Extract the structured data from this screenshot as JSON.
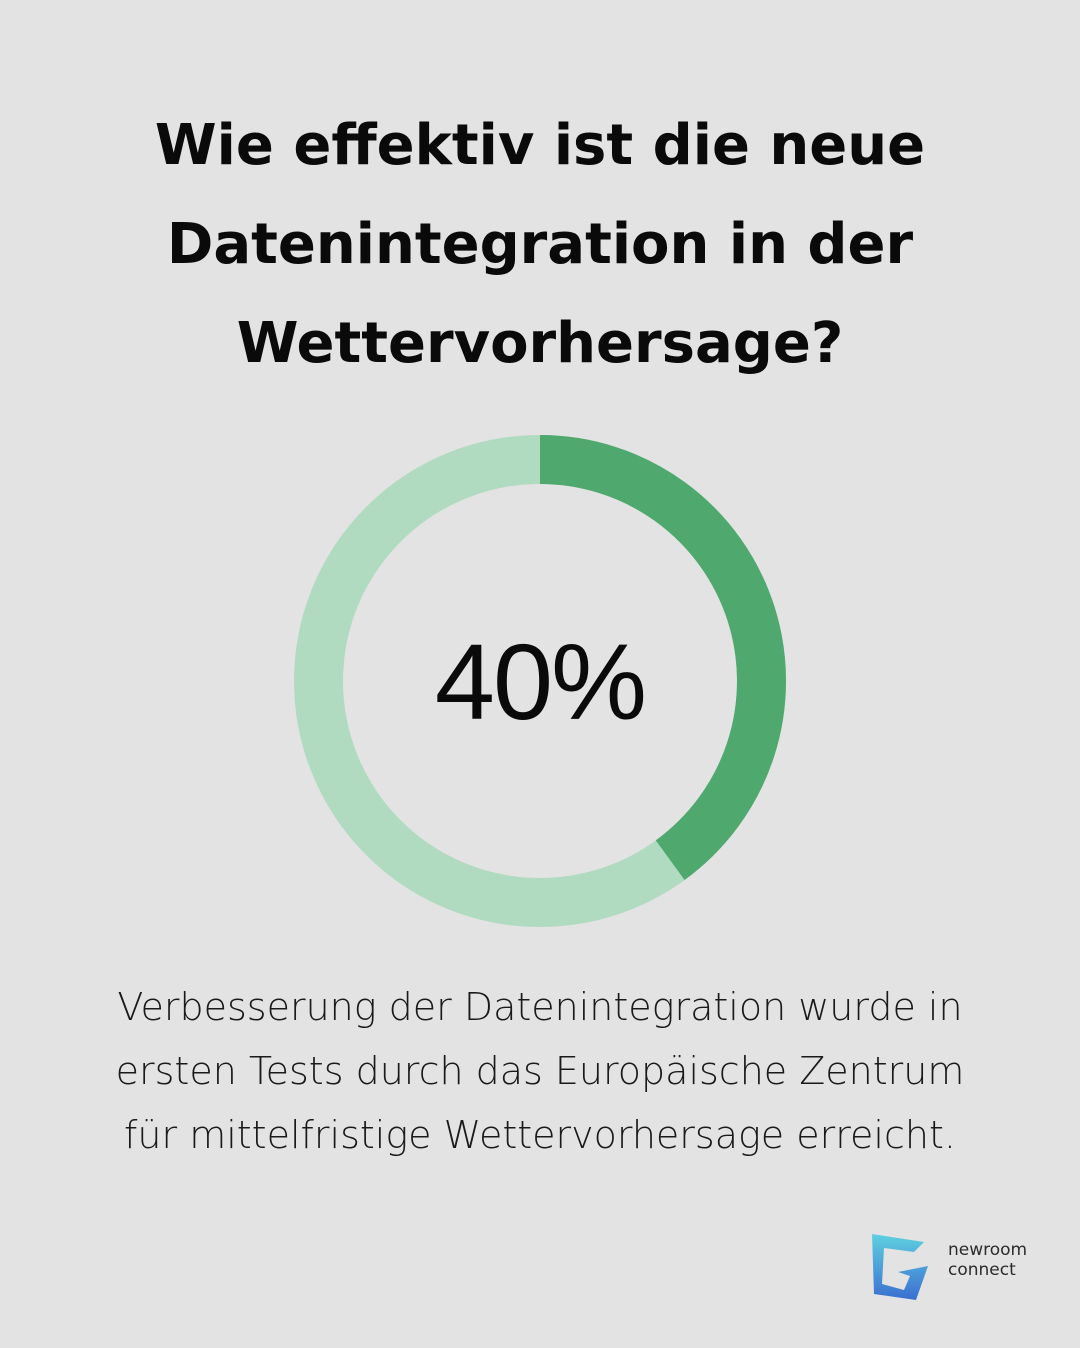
{
  "title_lines": [
    "Wie effektiv ist die neue",
    "Datenintegration in der",
    "Wettervorhersage?"
  ],
  "chart_data": {
    "type": "pie",
    "variant": "donut",
    "value_percent": 40,
    "center_label": "40%",
    "colors": {
      "value": "#4fa86d",
      "remainder": "#b1dbc1",
      "background": "#e2e3e2"
    }
  },
  "caption_lines": [
    "Verbesserung der Datenintegration wurde in",
    "ersten Tests durch das Europäische Zentrum",
    "für mittelfristige Wettervorhersage erreicht."
  ],
  "logo": {
    "line1": "newroom",
    "line2": "connect",
    "icon": "newroom-connect-logo-icon"
  }
}
